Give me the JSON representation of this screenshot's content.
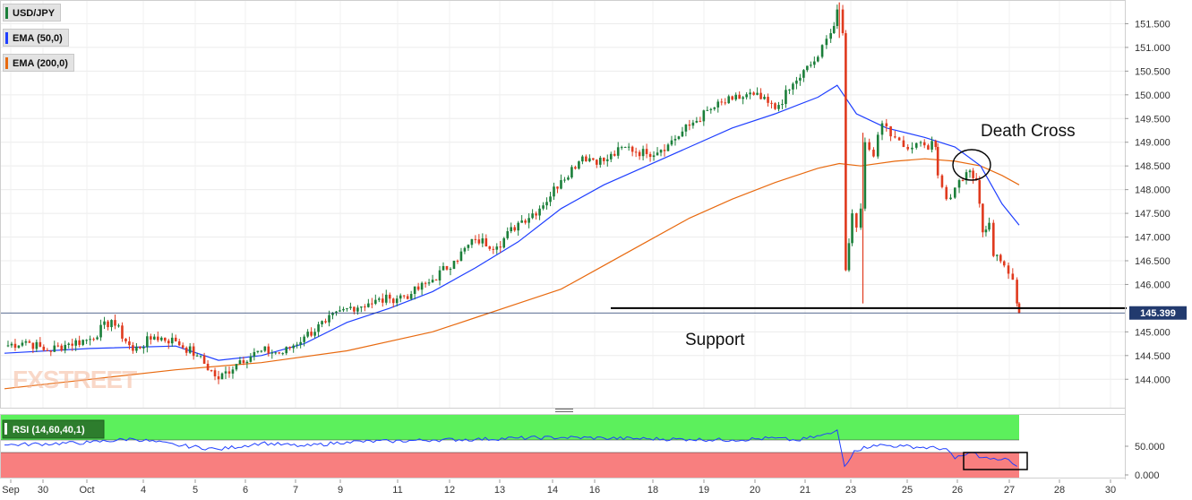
{
  "legend": [
    {
      "label": "USD/JPY",
      "color": "#1b7f3a"
    },
    {
      "label": "EMA (50,0)",
      "color": "#1f3fff"
    },
    {
      "label": "EMA (200,0)",
      "color": "#e86a10"
    }
  ],
  "annotations": {
    "death_cross": "Death Cross",
    "support": "Support"
  },
  "price_tag": "145.399",
  "watermark": "FXSTREET",
  "rsi_label": "RSI (14,60,40,1)",
  "chart_data": [
    {
      "type": "candlestick",
      "instrument": "USD/JPY",
      "ylim": [
        143.4,
        152.0
      ],
      "y_ticks": [
        {
          "v": 144.0,
          "label": "144.000"
        },
        {
          "v": 144.5,
          "label": "144.500"
        },
        {
          "v": 145.0,
          "label": "145.000"
        },
        {
          "v": 146.0,
          "label": "146.000"
        },
        {
          "v": 146.5,
          "label": "146.500"
        },
        {
          "v": 147.0,
          "label": "147.000"
        },
        {
          "v": 147.5,
          "label": "147.500"
        },
        {
          "v": 148.0,
          "label": "148.000"
        },
        {
          "v": 148.5,
          "label": "148.500"
        },
        {
          "v": 149.0,
          "label": "149.000"
        },
        {
          "v": 149.5,
          "label": "149.500"
        },
        {
          "v": 150.0,
          "label": "150.000"
        },
        {
          "v": 150.5,
          "label": "150.500"
        },
        {
          "v": 151.0,
          "label": "151.000"
        },
        {
          "v": 151.5,
          "label": "151.500"
        }
      ],
      "x_ticks": [
        "Sep",
        "30",
        "Oct",
        "4",
        "5",
        "6",
        "7",
        "9",
        "11",
        "12",
        "13",
        "14",
        "16",
        "18",
        "19",
        "20",
        "21",
        "23",
        "25",
        "26",
        "27",
        "28",
        "30"
      ],
      "last_price": 145.399,
      "support_level": 145.5,
      "price": [
        [
          0,
          144.7
        ],
        [
          0.5,
          144.8
        ],
        [
          1,
          144.6
        ],
        [
          1.5,
          144.75
        ],
        [
          2,
          144.85
        ],
        [
          2.5,
          145.25
        ],
        [
          3,
          144.6
        ],
        [
          3.5,
          144.9
        ],
        [
          4,
          144.8
        ],
        [
          4.5,
          144.5
        ],
        [
          5,
          144.0
        ],
        [
          5.5,
          144.4
        ],
        [
          6,
          144.6
        ],
        [
          6.5,
          144.55
        ],
        [
          7,
          144.9
        ],
        [
          7.5,
          145.2
        ],
        [
          8,
          145.5
        ],
        [
          8.5,
          145.6
        ],
        [
          9,
          145.7
        ],
        [
          9.5,
          145.8
        ],
        [
          10,
          146.1
        ],
        [
          10.5,
          146.5
        ],
        [
          11,
          146.95
        ],
        [
          11.5,
          146.8
        ],
        [
          12,
          147.3
        ],
        [
          12.5,
          147.6
        ],
        [
          13,
          148.2
        ],
        [
          13.5,
          148.7
        ],
        [
          14,
          148.6
        ],
        [
          14.5,
          148.9
        ],
        [
          15,
          148.75
        ],
        [
          15.5,
          148.95
        ],
        [
          16,
          149.35
        ],
        [
          16.5,
          149.7
        ],
        [
          17,
          149.9
        ],
        [
          17.5,
          150.0
        ],
        [
          18,
          149.7
        ],
        [
          18.5,
          150.3
        ],
        [
          19,
          150.8
        ],
        [
          19.3,
          151.3
        ],
        [
          19.45,
          151.8
        ],
        [
          19.58,
          151.3
        ],
        [
          19.65,
          146.3
        ],
        [
          19.8,
          147.5
        ],
        [
          19.9,
          147.2
        ],
        [
          20.0,
          147.6
        ],
        [
          20.1,
          149.0
        ],
        [
          20.3,
          148.7
        ],
        [
          20.5,
          149.4
        ],
        [
          20.8,
          149.1
        ],
        [
          21,
          148.9
        ],
        [
          21.4,
          149.0
        ],
        [
          21.75,
          148.9
        ],
        [
          21.8,
          148.3
        ],
        [
          22,
          147.8
        ],
        [
          22.3,
          148.2
        ],
        [
          22.55,
          148.4
        ],
        [
          22.7,
          148.2
        ],
        [
          22.85,
          147.1
        ],
        [
          23,
          147.3
        ],
        [
          23.1,
          146.6
        ],
        [
          23.35,
          146.4
        ],
        [
          23.55,
          146.1
        ],
        [
          23.65,
          145.6
        ],
        [
          23.7,
          145.4
        ]
      ],
      "ema50": [
        [
          0,
          144.55
        ],
        [
          2,
          144.65
        ],
        [
          4,
          144.7
        ],
        [
          5,
          144.4
        ],
        [
          6,
          144.5
        ],
        [
          7,
          144.75
        ],
        [
          8,
          145.2
        ],
        [
          9,
          145.5
        ],
        [
          10,
          145.85
        ],
        [
          11,
          146.35
        ],
        [
          12,
          146.9
        ],
        [
          13,
          147.6
        ],
        [
          14,
          148.1
        ],
        [
          15,
          148.5
        ],
        [
          16,
          148.9
        ],
        [
          17,
          149.3
        ],
        [
          18,
          149.6
        ],
        [
          19,
          149.95
        ],
        [
          19.45,
          150.2
        ],
        [
          19.9,
          149.6
        ],
        [
          20.6,
          149.3
        ],
        [
          21.5,
          149.1
        ],
        [
          22.2,
          148.9
        ],
        [
          22.8,
          148.5
        ],
        [
          23.3,
          147.7
        ],
        [
          23.7,
          147.25
        ]
      ],
      "ema200": [
        [
          0,
          143.8
        ],
        [
          2,
          144.0
        ],
        [
          4,
          144.2
        ],
        [
          6,
          144.35
        ],
        [
          8,
          144.6
        ],
        [
          10,
          145.0
        ],
        [
          11,
          145.3
        ],
        [
          12,
          145.6
        ],
        [
          13,
          145.9
        ],
        [
          14,
          146.4
        ],
        [
          15,
          146.9
        ],
        [
          16,
          147.4
        ],
        [
          17,
          147.8
        ],
        [
          18,
          148.15
        ],
        [
          19,
          148.45
        ],
        [
          19.5,
          148.55
        ],
        [
          20,
          148.5
        ],
        [
          20.8,
          148.6
        ],
        [
          21.5,
          148.65
        ],
        [
          22.2,
          148.6
        ],
        [
          22.8,
          148.5
        ],
        [
          23.3,
          148.3
        ],
        [
          23.7,
          148.1
        ]
      ]
    },
    {
      "type": "line",
      "name": "RSI (14,60,40,1)",
      "ylim": [
        0,
        100
      ],
      "y_ticks": [
        {
          "v": 0,
          "label": "0.000"
        },
        {
          "v": 50,
          "label": "50.000"
        }
      ],
      "overbought": 60,
      "oversold": 40,
      "values": [
        [
          0,
          52
        ],
        [
          2,
          56
        ],
        [
          3,
          62
        ],
        [
          4,
          52
        ],
        [
          5,
          45
        ],
        [
          6,
          55
        ],
        [
          7,
          50
        ],
        [
          8,
          57
        ],
        [
          9,
          58
        ],
        [
          10,
          60
        ],
        [
          11,
          61
        ],
        [
          12,
          63
        ],
        [
          13,
          64
        ],
        [
          14,
          63
        ],
        [
          15,
          62
        ],
        [
          16,
          61
        ],
        [
          17,
          60
        ],
        [
          18,
          63
        ],
        [
          18.5,
          59
        ],
        [
          19.3,
          70
        ],
        [
          19.45,
          76
        ],
        [
          19.62,
          18
        ],
        [
          19.85,
          43
        ],
        [
          20.3,
          52
        ],
        [
          21,
          50
        ],
        [
          22,
          46
        ],
        [
          22.2,
          30
        ],
        [
          22.6,
          40
        ],
        [
          22.85,
          32
        ],
        [
          23.2,
          28
        ],
        [
          23.45,
          29
        ],
        [
          23.65,
          18
        ]
      ]
    }
  ]
}
